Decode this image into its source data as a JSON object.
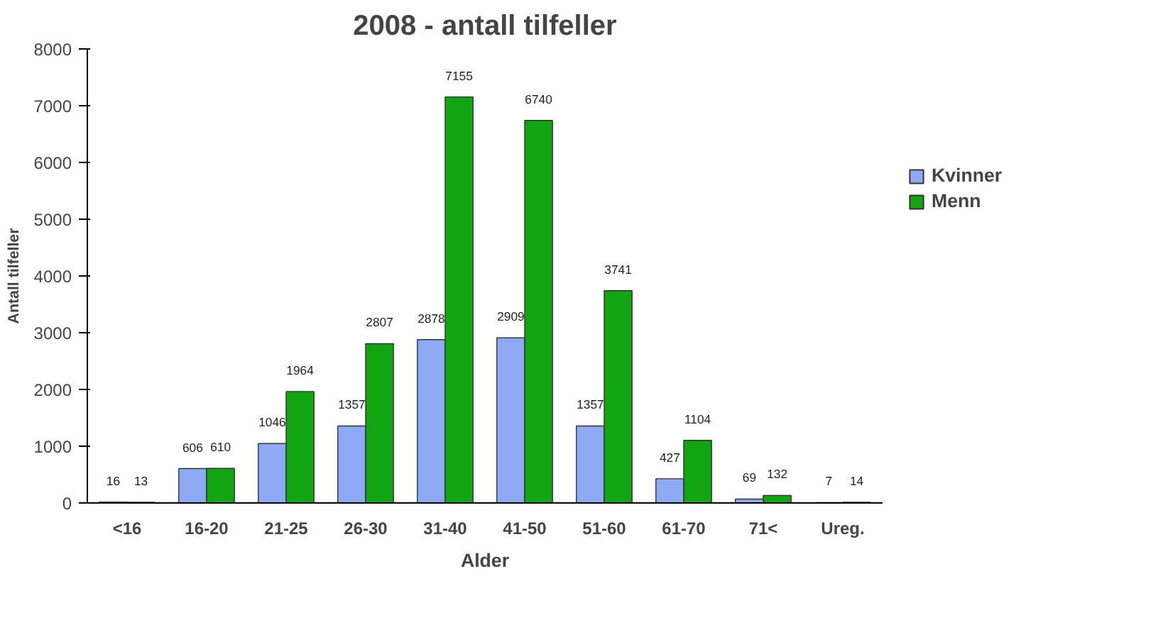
{
  "chart_data": {
    "type": "bar",
    "title": "2008 - antall tilfeller",
    "xlabel": "Alder",
    "ylabel": "Antall tilfeller",
    "categories": [
      "<16",
      "16-20",
      "21-25",
      "26-30",
      "31-40",
      "41-50",
      "51-60",
      "61-70",
      "71<",
      "Ureg."
    ],
    "series": [
      {
        "name": "Kvinner",
        "color": "#8faaf5",
        "values": [
          16,
          606,
          1046,
          1357,
          2878,
          2909,
          1357,
          427,
          69,
          7
        ]
      },
      {
        "name": "Menn",
        "color": "#12a512",
        "values": [
          13,
          610,
          1964,
          2807,
          7155,
          6740,
          3741,
          1104,
          132,
          14
        ]
      }
    ],
    "ylim": [
      0,
      8000
    ],
    "yticks": [
      0,
      1000,
      2000,
      3000,
      4000,
      5000,
      6000,
      7000,
      8000
    ],
    "data_labels": true,
    "grid": false,
    "legend": "right"
  }
}
